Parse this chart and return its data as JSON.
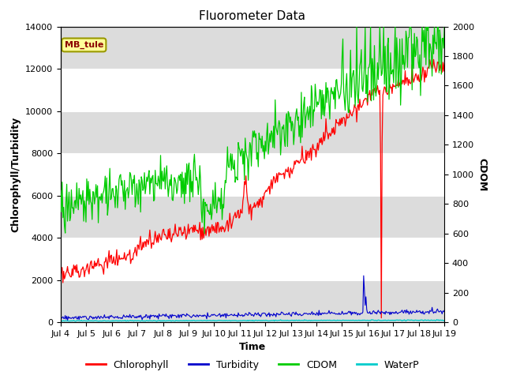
{
  "title": "Fluorometer Data",
  "xlabel": "Time",
  "ylabel_left": "Chlorophyll/Turbidity",
  "ylabel_right": "CDOM",
  "xlim": [
    0,
    15
  ],
  "ylim_left": [
    0,
    14000
  ],
  "ylim_right": [
    0,
    2000
  ],
  "x_tick_labels": [
    "Jul 4",
    "Jul 5",
    "Jul 6",
    "Jul 7",
    "Jul 8",
    "Jul 9",
    "Jul 10",
    "Jul 11",
    "Jul 12",
    "Jul 13",
    "Jul 14",
    "Jul 15",
    "Jul 16",
    "Jul 17",
    "Jul 18",
    "Jul 19"
  ],
  "annotation_text": "MB_tule",
  "annotation_color": "#8B0000",
  "annotation_bg": "#FFFF99",
  "annotation_border": "#999900",
  "bg_band_color": "#DCDCDC",
  "legend_items": [
    "Chlorophyll",
    "Turbidity",
    "CDOM",
    "WaterP"
  ],
  "legend_colors": [
    "#FF0000",
    "#0000CC",
    "#00CC00",
    "#00CCCC"
  ],
  "line_colors": {
    "chlorophyll": "#FF0000",
    "turbidity": "#0000CC",
    "cdom": "#00CC00",
    "waterp": "#00CCCC"
  },
  "n_points": 500,
  "seed": 99,
  "title_fontsize": 11,
  "axis_label_fontsize": 9,
  "tick_fontsize": 8
}
